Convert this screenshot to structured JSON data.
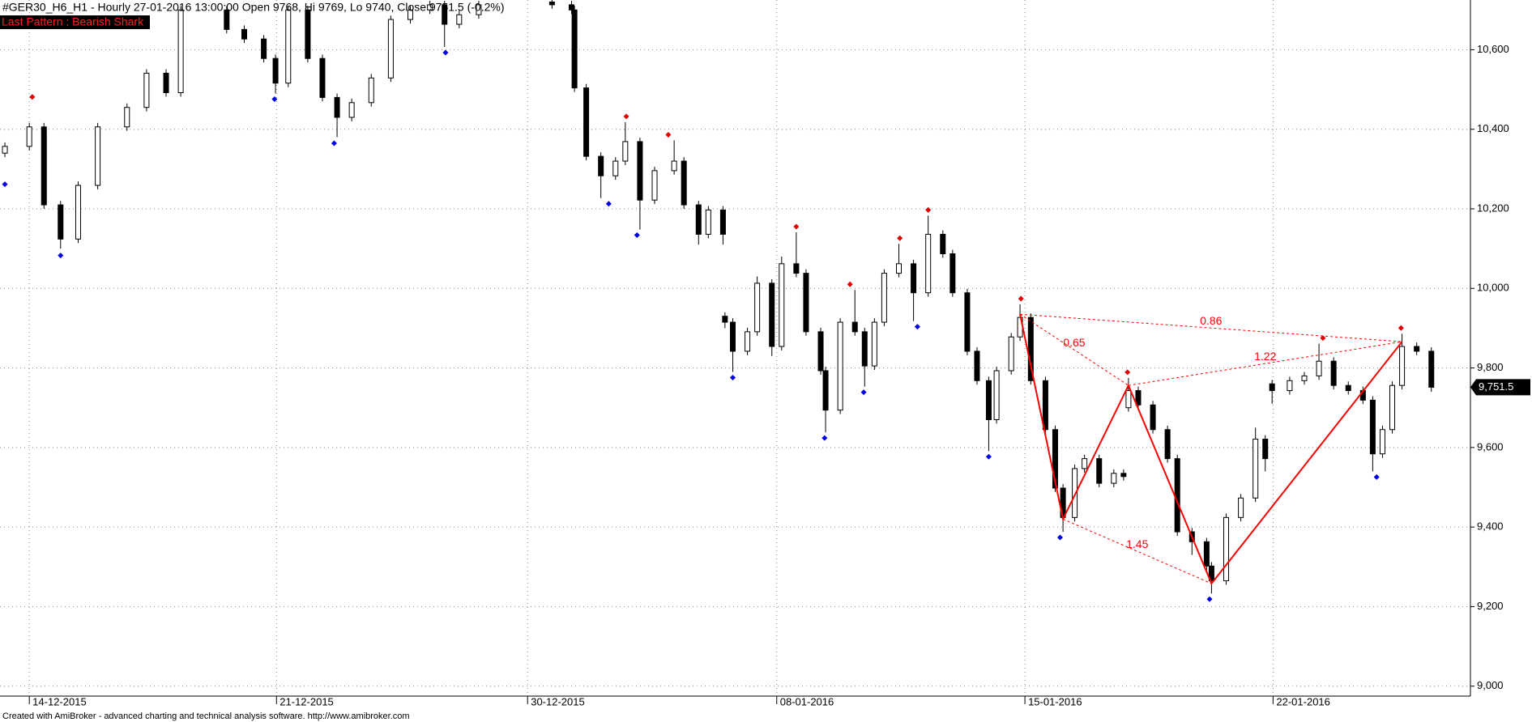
{
  "chart_data": {
    "type": "candlestick",
    "title": "#GER30_H6_H1 - Hourly 27-01-2016 13:00:00 Open 9768, Hi 9769, Lo 9740, Close 9751.5 (-0.2%)",
    "subtitle": "Last Pattern : Bearish Shark",
    "footer": "Created with AmiBroker - advanced charting and technical analysis software. http://www.amibroker.com",
    "xlim": [
      0,
      1505
    ],
    "ylim": [
      8975,
      10725
    ],
    "yticks": [
      {
        "value": 9000,
        "label": "9,000"
      },
      {
        "value": 9200,
        "label": "9,200"
      },
      {
        "value": 9400,
        "label": "9,400"
      },
      {
        "value": 9600,
        "label": "9,600"
      },
      {
        "value": 9800,
        "label": "9,800"
      },
      {
        "value": 10000,
        "label": "10,000"
      },
      {
        "value": 10200,
        "label": "10,200"
      },
      {
        "value": 10400,
        "label": "10,400"
      },
      {
        "value": 10600,
        "label": "10,600"
      }
    ],
    "xticks": [
      {
        "value": 30,
        "label": "14-12-2015"
      },
      {
        "value": 283,
        "label": "21-12-2015"
      },
      {
        "value": 540,
        "label": "30-12-2015"
      },
      {
        "value": 795,
        "label": "08-01-2016"
      },
      {
        "value": 1049,
        "label": "15-01-2016"
      },
      {
        "value": 1303,
        "label": "22-01-2016"
      }
    ],
    "grid": true,
    "last_price": {
      "value": 9751.5,
      "label": "9,751.5"
    },
    "candles": {
      "x": [
        5,
        30,
        45,
        62,
        80,
        100,
        130,
        150,
        170,
        185,
        232,
        250,
        270,
        282,
        295,
        315,
        330,
        345,
        360,
        380,
        400,
        420,
        440,
        455,
        470,
        490,
        565,
        585,
        588,
        600,
        615,
        630,
        640,
        655,
        670,
        690,
        700,
        715,
        725,
        740,
        742,
        750,
        765,
        775,
        790,
        800,
        815,
        825,
        840,
        845,
        860,
        875,
        885,
        895,
        905,
        920,
        935,
        950,
        965,
        975,
        990,
        1000,
        1012,
        1020,
        1035,
        1044,
        1055,
        1070,
        1080,
        1088,
        1100,
        1110,
        1125,
        1140,
        1150,
        1155,
        1165,
        1180,
        1195,
        1205,
        1220,
        1235,
        1240,
        1255,
        1270,
        1285,
        1295,
        1302,
        1320,
        1335,
        1350,
        1365,
        1380,
        1395,
        1405,
        1415,
        1425,
        1435,
        1450,
        1465
      ],
      "open": [
        10340,
        10357,
        10406,
        10210,
        10124,
        10259,
        10406,
        10455,
        10541,
        10492,
        10700,
        10651,
        10627,
        10578,
        10516,
        10700,
        10578,
        10480,
        10430,
        10467,
        10529,
        10676,
        10700,
        10713,
        10664,
        10688,
        10720,
        10713,
        10700,
        10504,
        10332,
        10283,
        10320,
        10369,
        10222,
        10296,
        10320,
        10210,
        10136,
        10197,
        9930,
        9915,
        9842,
        9891,
        10013,
        9854,
        10062,
        10038,
        9891,
        9793,
        9694,
        9915,
        9891,
        9805,
        9915,
        10038,
        10062,
        9989,
        10136,
        10087,
        9989,
        9842,
        9768,
        9670,
        9793,
        9878,
        9927,
        9768,
        9645,
        9498,
        9424,
        9547,
        9572,
        9510,
        9535,
        9700,
        9743,
        9707,
        9645,
        9572,
        9388,
        9363,
        9302,
        9265,
        9424,
        9473,
        9621,
        9760,
        9743,
        9768,
        9780,
        9817,
        9756,
        9743,
        9719,
        9584,
        9645,
        9756,
        9854,
        9842
      ],
      "high": [
        10367,
        10416,
        10416,
        10220,
        10269,
        10416,
        10465,
        10551,
        10551,
        10710,
        10710,
        10661,
        10637,
        10588,
        10710,
        10710,
        10588,
        10490,
        10477,
        10539,
        10686,
        10710,
        10723,
        10723,
        10698,
        10723,
        10730,
        10723,
        10710,
        10514,
        10342,
        10330,
        10418,
        10379,
        10306,
        10372,
        10330,
        10220,
        10207,
        10207,
        9940,
        9925,
        9901,
        10030,
        10023,
        10080,
        10141,
        10048,
        9901,
        9803,
        9925,
        9996,
        9901,
        9925,
        10048,
        10112,
        10072,
        10183,
        10146,
        10097,
        9999,
        9852,
        9778,
        9803,
        9888,
        9960,
        9937,
        9778,
        9655,
        9508,
        9557,
        9582,
        9582,
        9545,
        9545,
        9775,
        9753,
        9717,
        9655,
        9582,
        9398,
        9373,
        9312,
        9434,
        9483,
        9650,
        9631,
        9770,
        9778,
        9790,
        9861,
        9827,
        9766,
        9753,
        9729,
        9655,
        9766,
        9886,
        9864,
        9852
      ],
      "low": [
        10330,
        10347,
        10200,
        10100,
        10114,
        10249,
        10396,
        10445,
        10482,
        10482,
        10641,
        10617,
        10568,
        10490,
        10506,
        10568,
        10470,
        10380,
        10420,
        10457,
        10519,
        10666,
        10690,
        10607,
        10654,
        10678,
        10703,
        10690,
        10494,
        10322,
        10227,
        10273,
        10310,
        10148,
        10212,
        10286,
        10200,
        10110,
        10126,
        10110,
        9900,
        9790,
        9832,
        9881,
        9830,
        9844,
        10028,
        9881,
        9783,
        9638,
        9684,
        9881,
        9753,
        9795,
        9905,
        10028,
        9918,
        9979,
        10077,
        9979,
        9832,
        9758,
        9591,
        9660,
        9783,
        9868,
        9758,
        9635,
        9488,
        9388,
        9414,
        9537,
        9500,
        9500,
        9517,
        9690,
        9697,
        9635,
        9562,
        9378,
        9330,
        9290,
        9233,
        9255,
        9414,
        9463,
        9540,
        9710,
        9733,
        9758,
        9770,
        9746,
        9733,
        9709,
        9540,
        9574,
        9635,
        9746,
        9832,
        9740
      ],
      "close": [
        10357,
        10406,
        10210,
        10124,
        10259,
        10406,
        10455,
        10541,
        10492,
        10700,
        10651,
        10627,
        10578,
        10516,
        10700,
        10578,
        10480,
        10430,
        10467,
        10529,
        10676,
        10700,
        10713,
        10664,
        10688,
        10713,
        10713,
        10700,
        10504,
        10332,
        10283,
        10320,
        10369,
        10222,
        10296,
        10320,
        10210,
        10136,
        10197,
        10136,
        9915,
        9842,
        9891,
        10013,
        9854,
        10062,
        10038,
        9891,
        9793,
        9694,
        9915,
        9891,
        9805,
        9915,
        10038,
        10062,
        9989,
        10136,
        10087,
        9989,
        9842,
        9768,
        9670,
        9793,
        9878,
        9927,
        9768,
        9645,
        9498,
        9424,
        9547,
        9572,
        9510,
        9535,
        9527,
        9743,
        9707,
        9645,
        9572,
        9388,
        9363,
        9302,
        9265,
        9424,
        9473,
        9621,
        9572,
        9743,
        9768,
        9780,
        9817,
        9756,
        9743,
        9719,
        9584,
        9645,
        9756,
        9854,
        9842,
        9751.5
      ]
    },
    "pivot_highs": {
      "color": "#e00000",
      "x": [
        33,
        641,
        684,
        815,
        870,
        921,
        950,
        1045,
        1154,
        1354,
        1434
      ],
      "values": [
        10467,
        10418,
        10372,
        10141,
        9996,
        10112,
        10183,
        9960,
        9775,
        9861,
        9886
      ]
    },
    "pivot_lows": {
      "color": "#0000e0",
      "x": [
        5,
        62,
        281,
        342,
        456,
        623,
        652,
        750,
        844,
        884,
        939,
        1012,
        1085,
        1238,
        1409
      ],
      "values": [
        10276,
        10097,
        10490,
        10379,
        10607,
        10227,
        10148,
        9790,
        9638,
        9753,
        9918,
        9591,
        9388,
        9233,
        9540
      ]
    },
    "pattern": {
      "color": "#ff0000",
      "x": [
        1044,
        1088,
        1155,
        1240,
        1435
      ],
      "values": [
        9935,
        9420,
        9756,
        9258,
        9866
      ],
      "ratios": [
        0.65,
        0.86,
        1.22,
        1.45
      ]
    }
  }
}
